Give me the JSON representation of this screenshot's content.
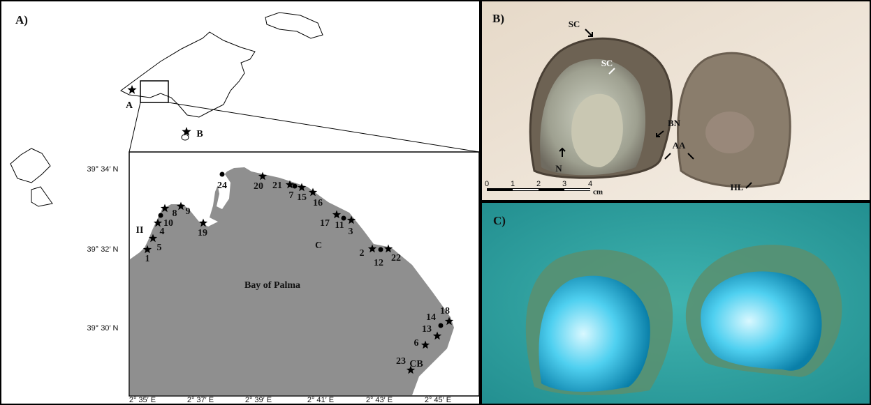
{
  "panel_a": {
    "label": "A)",
    "sites": [
      "A",
      "B"
    ],
    "lat_ticks": [
      "39° 34′ N",
      "39° 32′ N",
      "39° 30′ N"
    ],
    "lon_ticks": [
      "2° 35′ E",
      "2° 37′ E",
      "2° 39′ E",
      "2° 41′ E",
      "2° 43′ E",
      "2° 45′ E"
    ],
    "water_label": "Bay of Palma",
    "zone_labels": [
      "II",
      "C",
      "CB"
    ],
    "stations": [
      "1",
      "2",
      "3",
      "4",
      "5",
      "6",
      "7",
      "8",
      "9",
      "10",
      "11",
      "12",
      "13",
      "14",
      "15",
      "16",
      "17",
      "18",
      "19",
      "20",
      "21",
      "22",
      "23",
      "24"
    ]
  },
  "panel_b": {
    "label": "B)",
    "annotations": [
      "SC",
      "SC",
      "BN",
      "AA",
      "N",
      "HL"
    ],
    "scale_ticks": [
      "0",
      "1",
      "2",
      "3",
      "4"
    ],
    "scale_unit": "cm"
  },
  "panel_c": {
    "label": "C)"
  }
}
